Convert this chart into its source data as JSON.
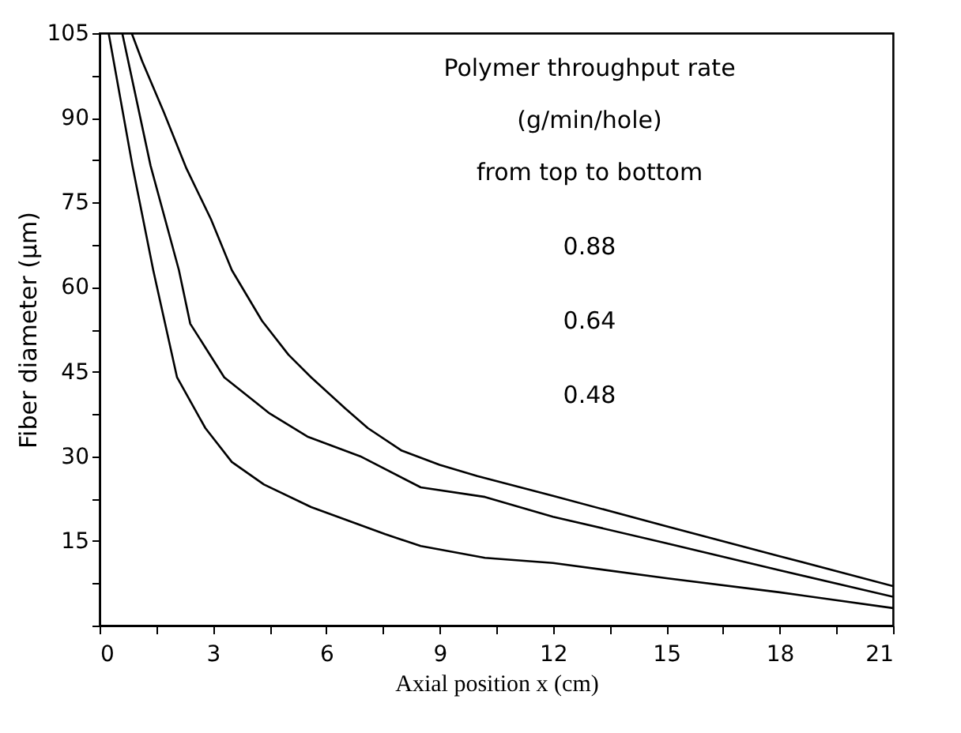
{
  "chart_data": {
    "type": "line",
    "xlabel": "Axial position x (cm)",
    "ylabel": "Fiber diameter (μm)",
    "xlim": [
      0,
      21
    ],
    "ylim": [
      0,
      105
    ],
    "xticks": [
      0,
      {
        "value": 1.5,
        "label": null
      },
      3,
      {
        "value": 4.5,
        "label": null
      },
      6,
      {
        "value": 7.5,
        "label": null
      },
      9,
      {
        "value": 10.5,
        "label": null
      },
      12,
      {
        "value": 13.5,
        "label": null
      },
      15,
      {
        "value": 16.5,
        "label": null
      },
      18,
      {
        "value": 19.5,
        "label": null
      },
      21
    ],
    "yticks": [
      {
        "value": 0,
        "label": null
      },
      {
        "value": 7.5,
        "label": null
      },
      15,
      {
        "value": 22.5,
        "label": null
      },
      30,
      {
        "value": 37.5,
        "label": null
      },
      45,
      {
        "value": 52.5,
        "label": null
      },
      60,
      {
        "value": 67.5,
        "label": null
      },
      75,
      {
        "value": 82.5,
        "label": null
      },
      90,
      {
        "value": 97.5,
        "label": null
      },
      105
    ],
    "grid": false,
    "legend": false,
    "marker": "none",
    "line_style": "solid",
    "annotations": [
      "Polymer throughput rate",
      "(g/min/hole)",
      "from top to bottom",
      "0.88",
      "0.64",
      "0.48"
    ],
    "series": [
      {
        "color": "#000000",
        "x": [
          0.85,
          1.13,
          1.7,
          2.3,
          2.95,
          3.5,
          4.3,
          5.0,
          5.6,
          6.5,
          7.1,
          8.0,
          9.0,
          10.0,
          12.0,
          15.0,
          18.0,
          21.0
        ],
        "values": [
          105,
          100,
          91,
          81,
          72,
          63,
          54,
          48,
          44,
          38.5,
          35,
          31,
          28.5,
          26.5,
          23,
          17.6,
          12.3,
          7
        ]
      },
      {
        "color": "#000000",
        "x": [
          0.6,
          1.35,
          2.1,
          2.4,
          3.3,
          4.5,
          5.5,
          6.9,
          8.5,
          10.2,
          12.0,
          15.0,
          18.0,
          21.0
        ],
        "values": [
          105,
          81.5,
          63,
          53.5,
          44,
          37.6,
          33.5,
          30,
          24.5,
          22.8,
          19.3,
          14.6,
          9.8,
          5.1
        ]
      },
      {
        "color": "#000000",
        "x": [
          0.24,
          0.87,
          1.42,
          2.05,
          2.8,
          3.5,
          4.35,
          5.6,
          7.56,
          8.5,
          10.2,
          12.0,
          15.0,
          18.0,
          21.0
        ],
        "values": [
          105,
          81.5,
          63,
          44,
          35,
          29,
          25,
          21,
          16.2,
          14.1,
          12,
          11.1,
          8.4,
          5.9,
          3.1
        ]
      }
    ]
  }
}
